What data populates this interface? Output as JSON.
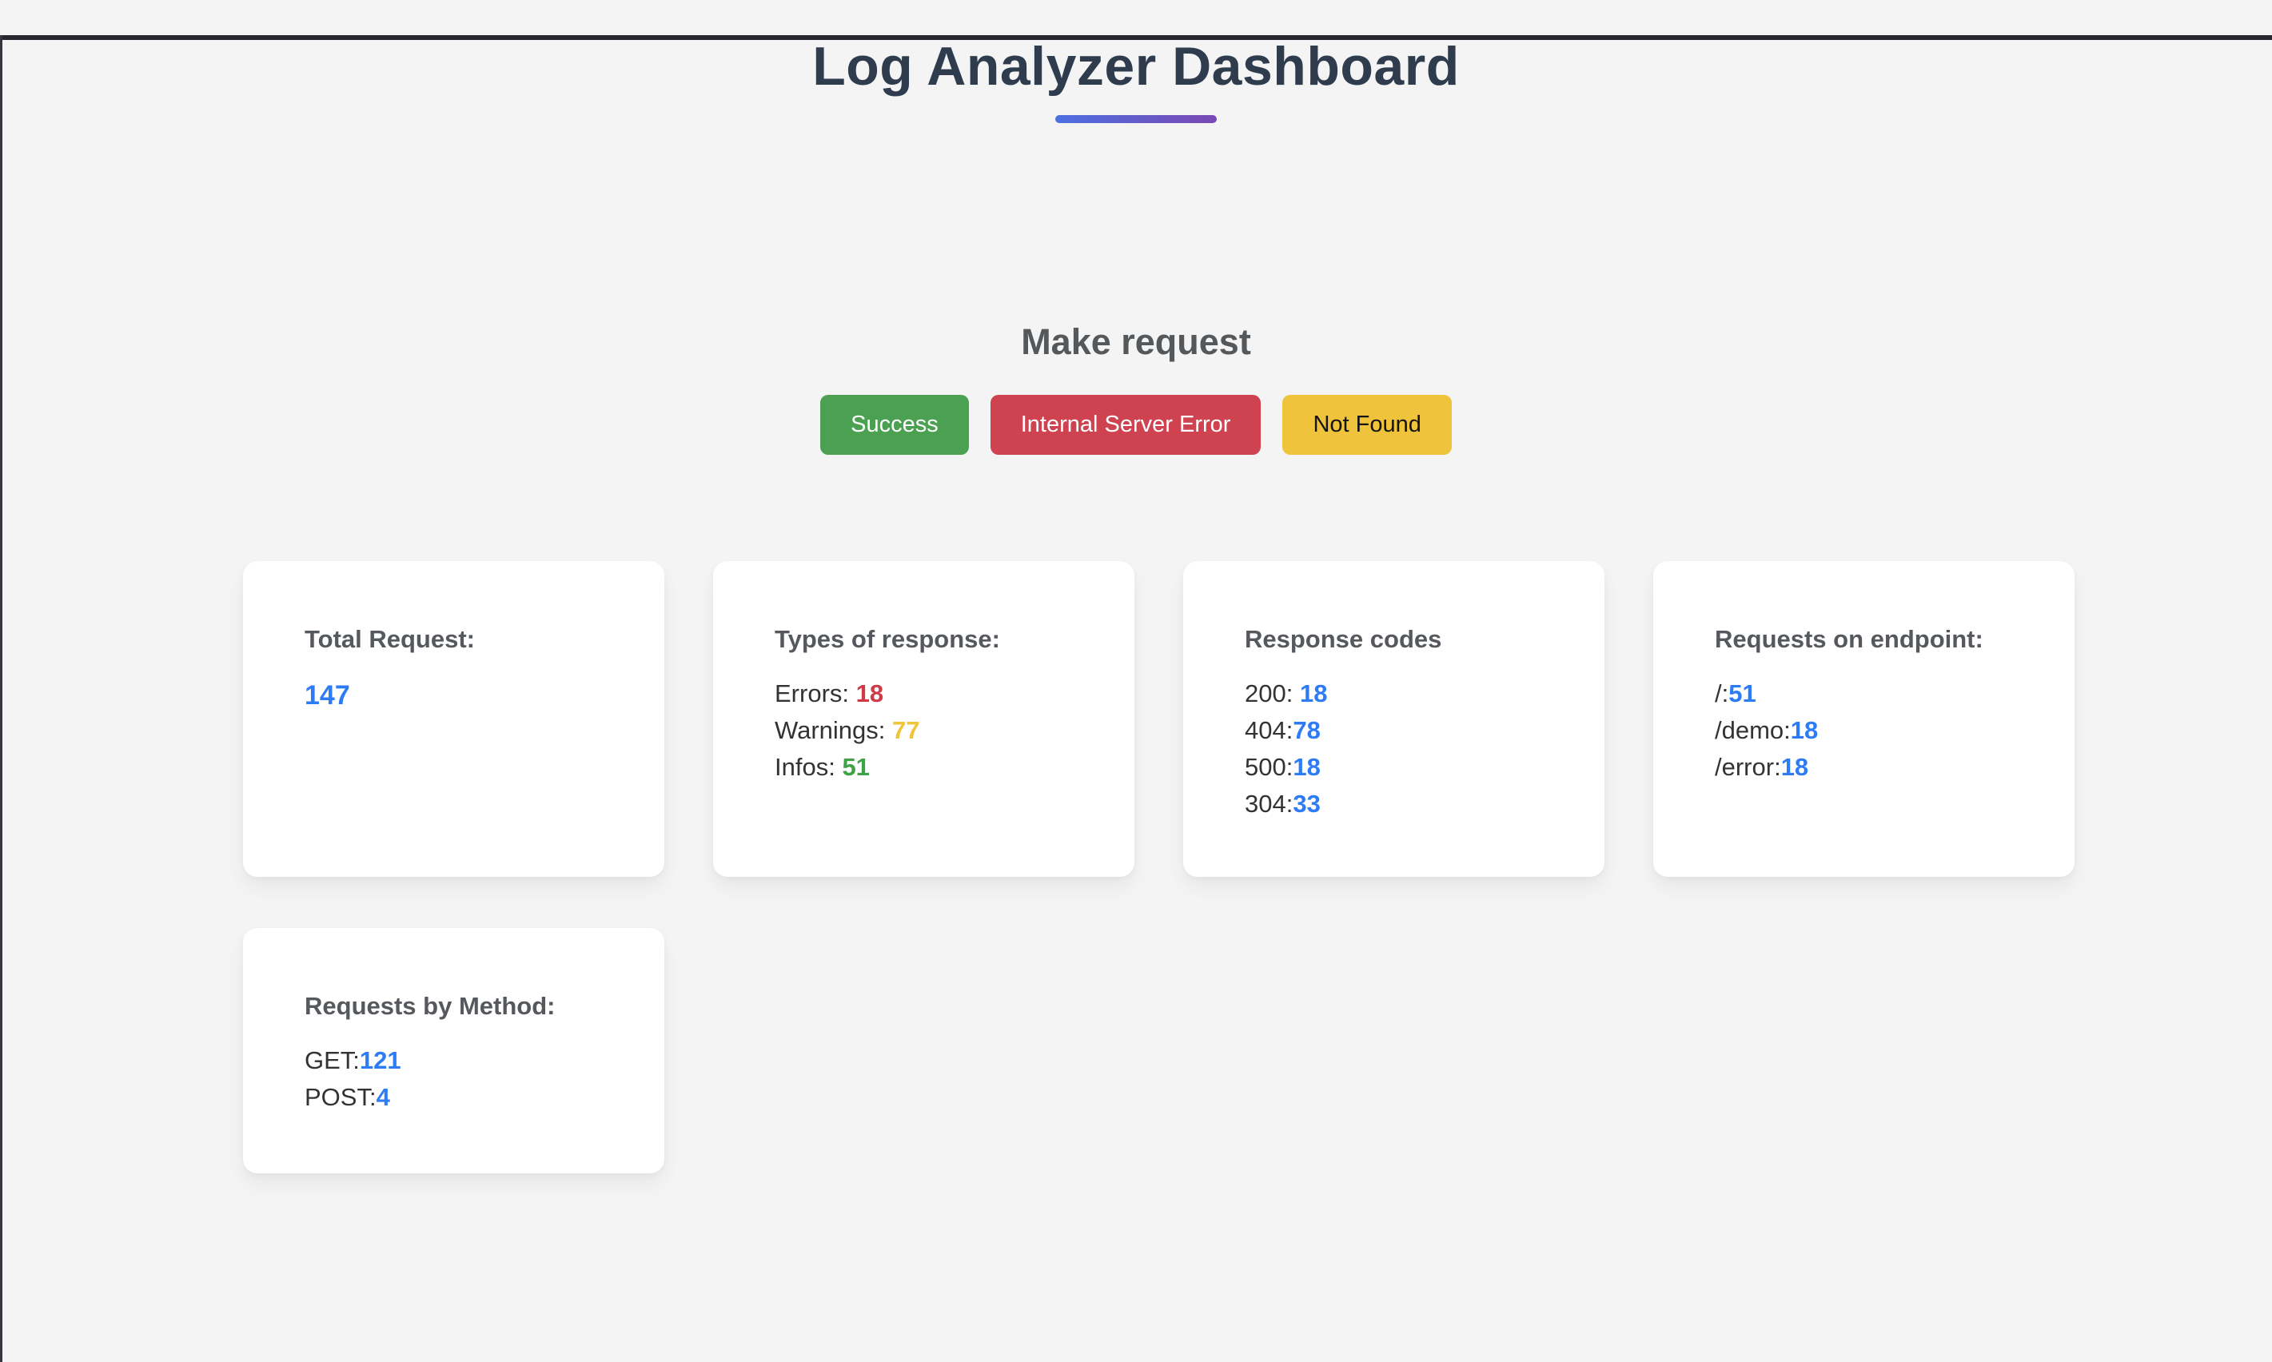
{
  "header": {
    "title": "Log Analyzer Dashboard"
  },
  "accent": {
    "underline_gradient_start": "#4d6fe0",
    "underline_gradient_end": "#7a48b3"
  },
  "make_request": {
    "heading": "Make request",
    "buttons": [
      {
        "label": "Success",
        "bg": "#4ba052",
        "fg": "#ffffff"
      },
      {
        "label": "Internal Server Error",
        "bg": "#cf4350",
        "fg": "#ffffff"
      },
      {
        "label": "Not Found",
        "bg": "#f0c33c",
        "fg": "#141414"
      }
    ]
  },
  "value_colors": {
    "blue": "#2d7bf5",
    "red": "#ce3b47",
    "yellow": "#f2c437",
    "green": "#3fa246"
  },
  "cards": [
    {
      "title": "Total Request:",
      "short": false,
      "lines": [
        {
          "label": "",
          "value": "147",
          "color": "blue",
          "big": true
        }
      ]
    },
    {
      "title": "Types of response:",
      "short": false,
      "lines": [
        {
          "label": "Errors: ",
          "value": "18",
          "color": "red",
          "big": false
        },
        {
          "label": "Warnings: ",
          "value": "77",
          "color": "yellow",
          "big": false
        },
        {
          "label": "Infos: ",
          "value": "51",
          "color": "green",
          "big": false
        }
      ]
    },
    {
      "title": "Response codes",
      "short": false,
      "lines": [
        {
          "label": "200: ",
          "value": "18",
          "color": "blue",
          "big": false
        },
        {
          "label": "404:",
          "value": "78",
          "color": "blue",
          "big": false
        },
        {
          "label": "500:",
          "value": "18",
          "color": "blue",
          "big": false
        },
        {
          "label": "304:",
          "value": "33",
          "color": "blue",
          "big": false
        }
      ]
    },
    {
      "title": "Requests on endpoint:",
      "short": false,
      "lines": [
        {
          "label": "/:",
          "value": "51",
          "color": "blue",
          "big": false
        },
        {
          "label": "/demo:",
          "value": "18",
          "color": "blue",
          "big": false
        },
        {
          "label": "/error:",
          "value": "18",
          "color": "blue",
          "big": false
        }
      ]
    },
    {
      "title": "Requests by Method:",
      "short": true,
      "lines": [
        {
          "label": "GET:",
          "value": "121",
          "color": "blue",
          "big": false
        },
        {
          "label": "POST:",
          "value": "4",
          "color": "blue",
          "big": false
        }
      ]
    }
  ]
}
